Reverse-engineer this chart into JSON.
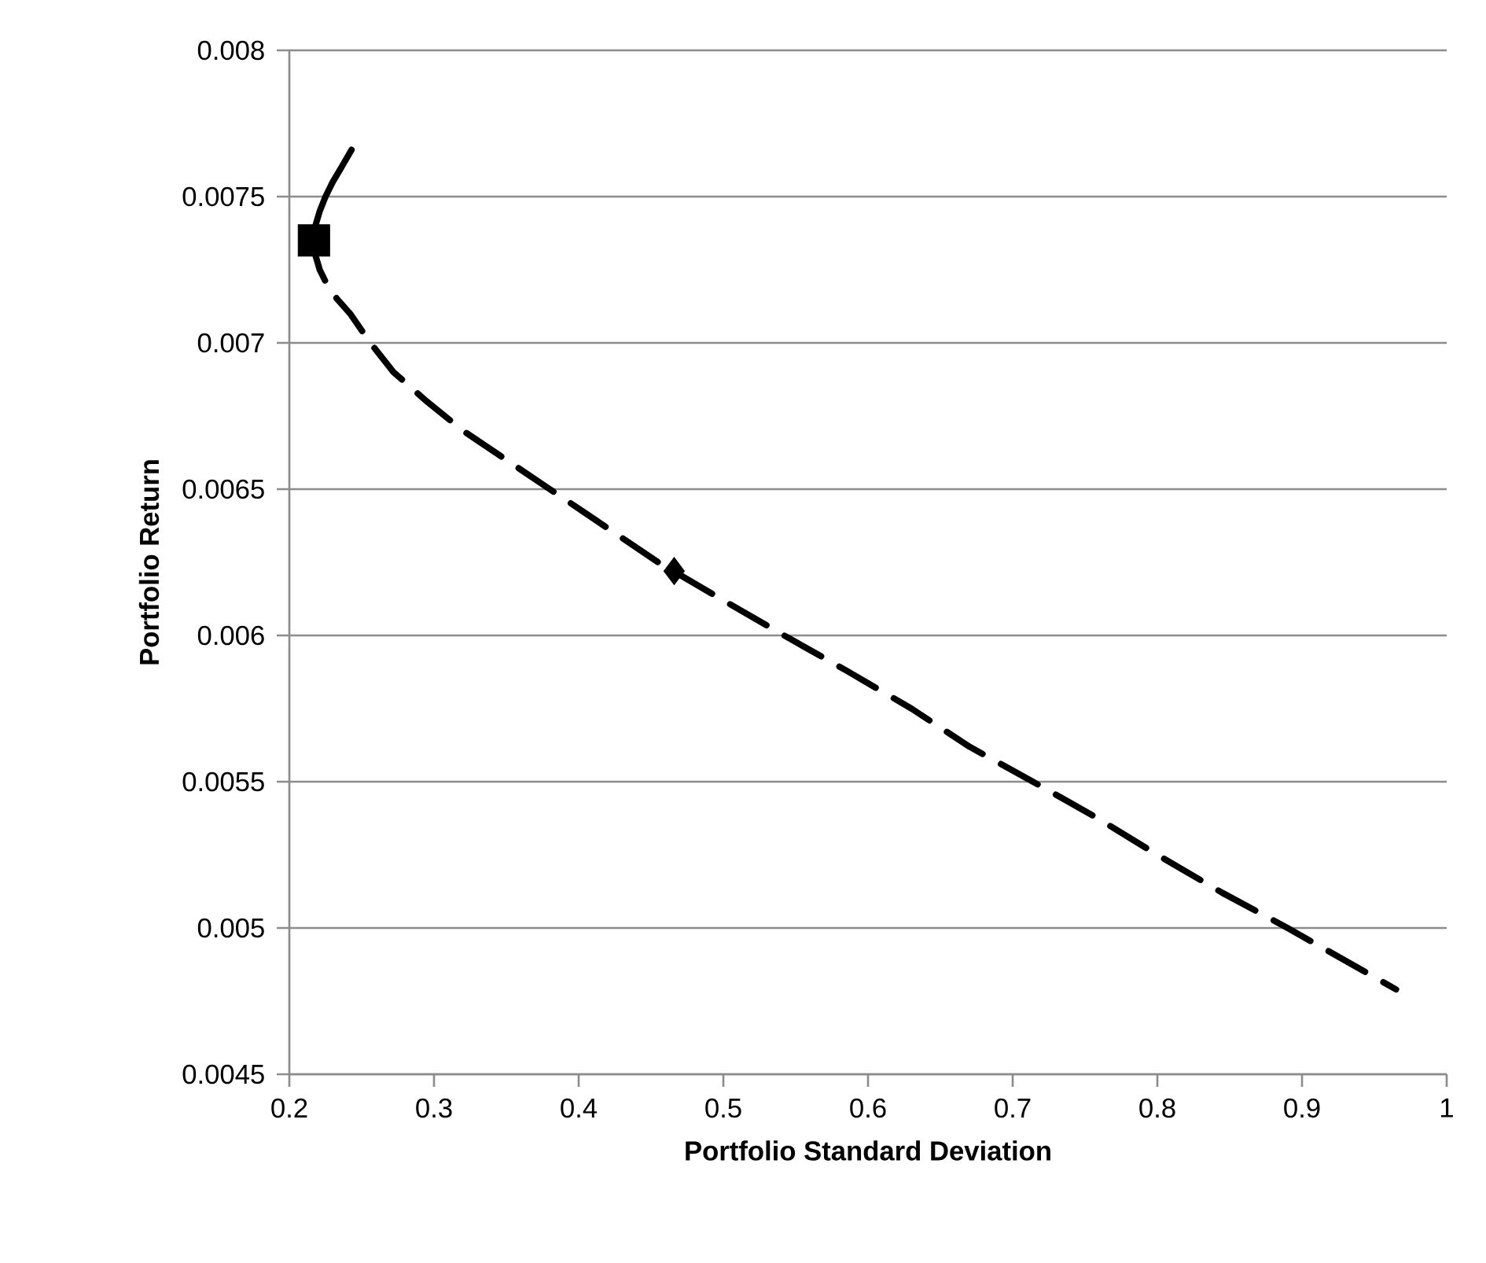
{
  "chart_data": {
    "type": "line",
    "xlabel": "Portfolio Standard Deviation",
    "ylabel": "Portfolio Return",
    "xlim": [
      0.2,
      1
    ],
    "xticks": [
      0.2,
      0.3,
      0.4,
      0.5,
      0.6,
      0.7,
      0.8,
      0.9,
      1
    ],
    "ylim": [
      0.0045,
      0.008
    ],
    "yticks": [
      0.0045,
      0.005,
      0.0055,
      0.006,
      0.0065,
      0.007,
      0.0075,
      0.008
    ],
    "grid": "y",
    "series": [
      {
        "color": "#000000",
        "line_style": "solid",
        "marker": "none",
        "x": [
          0.217,
          0.218,
          0.221,
          0.225,
          0.23,
          0.236,
          0.243
        ],
        "values": [
          0.00735,
          0.0074,
          0.00745,
          0.0075,
          0.00755,
          0.0076,
          0.00766
        ]
      },
      {
        "color": "#000000",
        "line_style": "dashed",
        "marker": "none",
        "x": [
          0.217,
          0.218,
          0.221,
          0.226,
          0.233,
          0.242,
          0.256,
          0.272,
          0.295,
          0.32,
          0.35,
          0.38,
          0.41,
          0.455,
          0.5,
          0.542,
          0.585,
          0.63,
          0.67,
          0.714,
          0.757,
          0.8,
          0.845,
          0.89,
          0.965
        ],
        "values": [
          0.00735,
          0.0073,
          0.00725,
          0.0072,
          0.00715,
          0.0071,
          0.007,
          0.0069,
          0.0068,
          0.0067,
          0.0066,
          0.0065,
          0.0064,
          0.00625,
          0.00612,
          0.006,
          0.00588,
          0.00575,
          0.00562,
          0.0055,
          0.00538,
          0.00525,
          0.00512,
          0.005,
          0.00479
        ]
      },
      {
        "type": "scatter",
        "color": "#000000",
        "marker": "square",
        "x": [
          0.217
        ],
        "values": [
          0.00735
        ]
      },
      {
        "type": "scatter",
        "color": "#000000",
        "marker": "diamond",
        "x": [
          0.466
        ],
        "values": [
          0.00622
        ]
      }
    ]
  }
}
